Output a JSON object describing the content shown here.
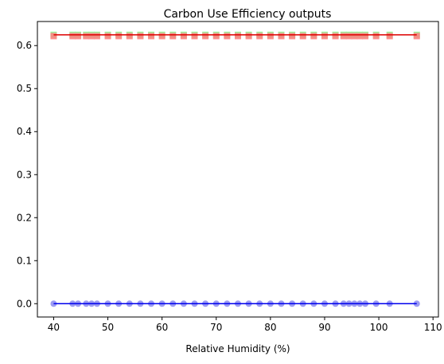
{
  "chart_data": {
    "type": "scatter",
    "title": "Carbon Use Efficiency outputs",
    "xlabel": "Relative Humidity (%)",
    "ylabel": "",
    "xlim": [
      37,
      111
    ],
    "ylim": [
      -0.031,
      0.656
    ],
    "xticks": [
      40,
      50,
      60,
      70,
      80,
      90,
      100,
      110
    ],
    "yticks": [
      0.0,
      0.1,
      0.2,
      0.3,
      0.4,
      0.5,
      0.6
    ],
    "ytick_labels": [
      "0.0",
      "0.1",
      "0.2",
      "0.3",
      "0.4",
      "0.5",
      "0.6"
    ],
    "grid": false,
    "series": [
      {
        "color": "#90ee90",
        "marker": "square",
        "y": 0.625,
        "x": [
          40,
          43.5,
          44.5,
          46,
          47,
          48,
          50,
          52,
          54,
          56,
          58,
          60,
          62,
          64,
          66,
          68,
          70,
          72,
          74,
          76,
          78,
          80,
          82,
          84,
          86,
          88,
          90,
          92,
          93.5,
          94.5,
          95.5,
          96.5,
          97.5,
          99.5,
          102,
          107
        ]
      },
      {
        "color": "#ff8080",
        "marker": "square",
        "y": 0.622,
        "x": [
          40,
          43.5,
          44.5,
          46,
          47,
          48,
          50,
          52,
          54,
          56,
          58,
          60,
          62,
          64,
          66,
          68,
          70,
          72,
          74,
          76,
          78,
          80,
          82,
          84,
          86,
          88,
          90,
          92,
          93.5,
          94.5,
          95.5,
          96.5,
          97.5,
          99.5,
          102,
          107
        ]
      },
      {
        "color": "#8b8bf0",
        "marker": "circle",
        "y": 0.0,
        "x": [
          40,
          43.5,
          44.5,
          46,
          47,
          48,
          50,
          52,
          54,
          56,
          58,
          60,
          62,
          64,
          66,
          68,
          70,
          72,
          74,
          76,
          78,
          80,
          82,
          84,
          86,
          88,
          90,
          92,
          93.5,
          94.5,
          95.5,
          96.5,
          97.5,
          99.5,
          102,
          107
        ]
      }
    ],
    "lines": [
      {
        "color": "#dd0000",
        "x": [
          40,
          107
        ],
        "y": [
          0.625,
          0.625
        ]
      },
      {
        "color": "#0000ee",
        "x": [
          40,
          107
        ],
        "y": [
          0.0,
          0.0
        ]
      }
    ]
  }
}
